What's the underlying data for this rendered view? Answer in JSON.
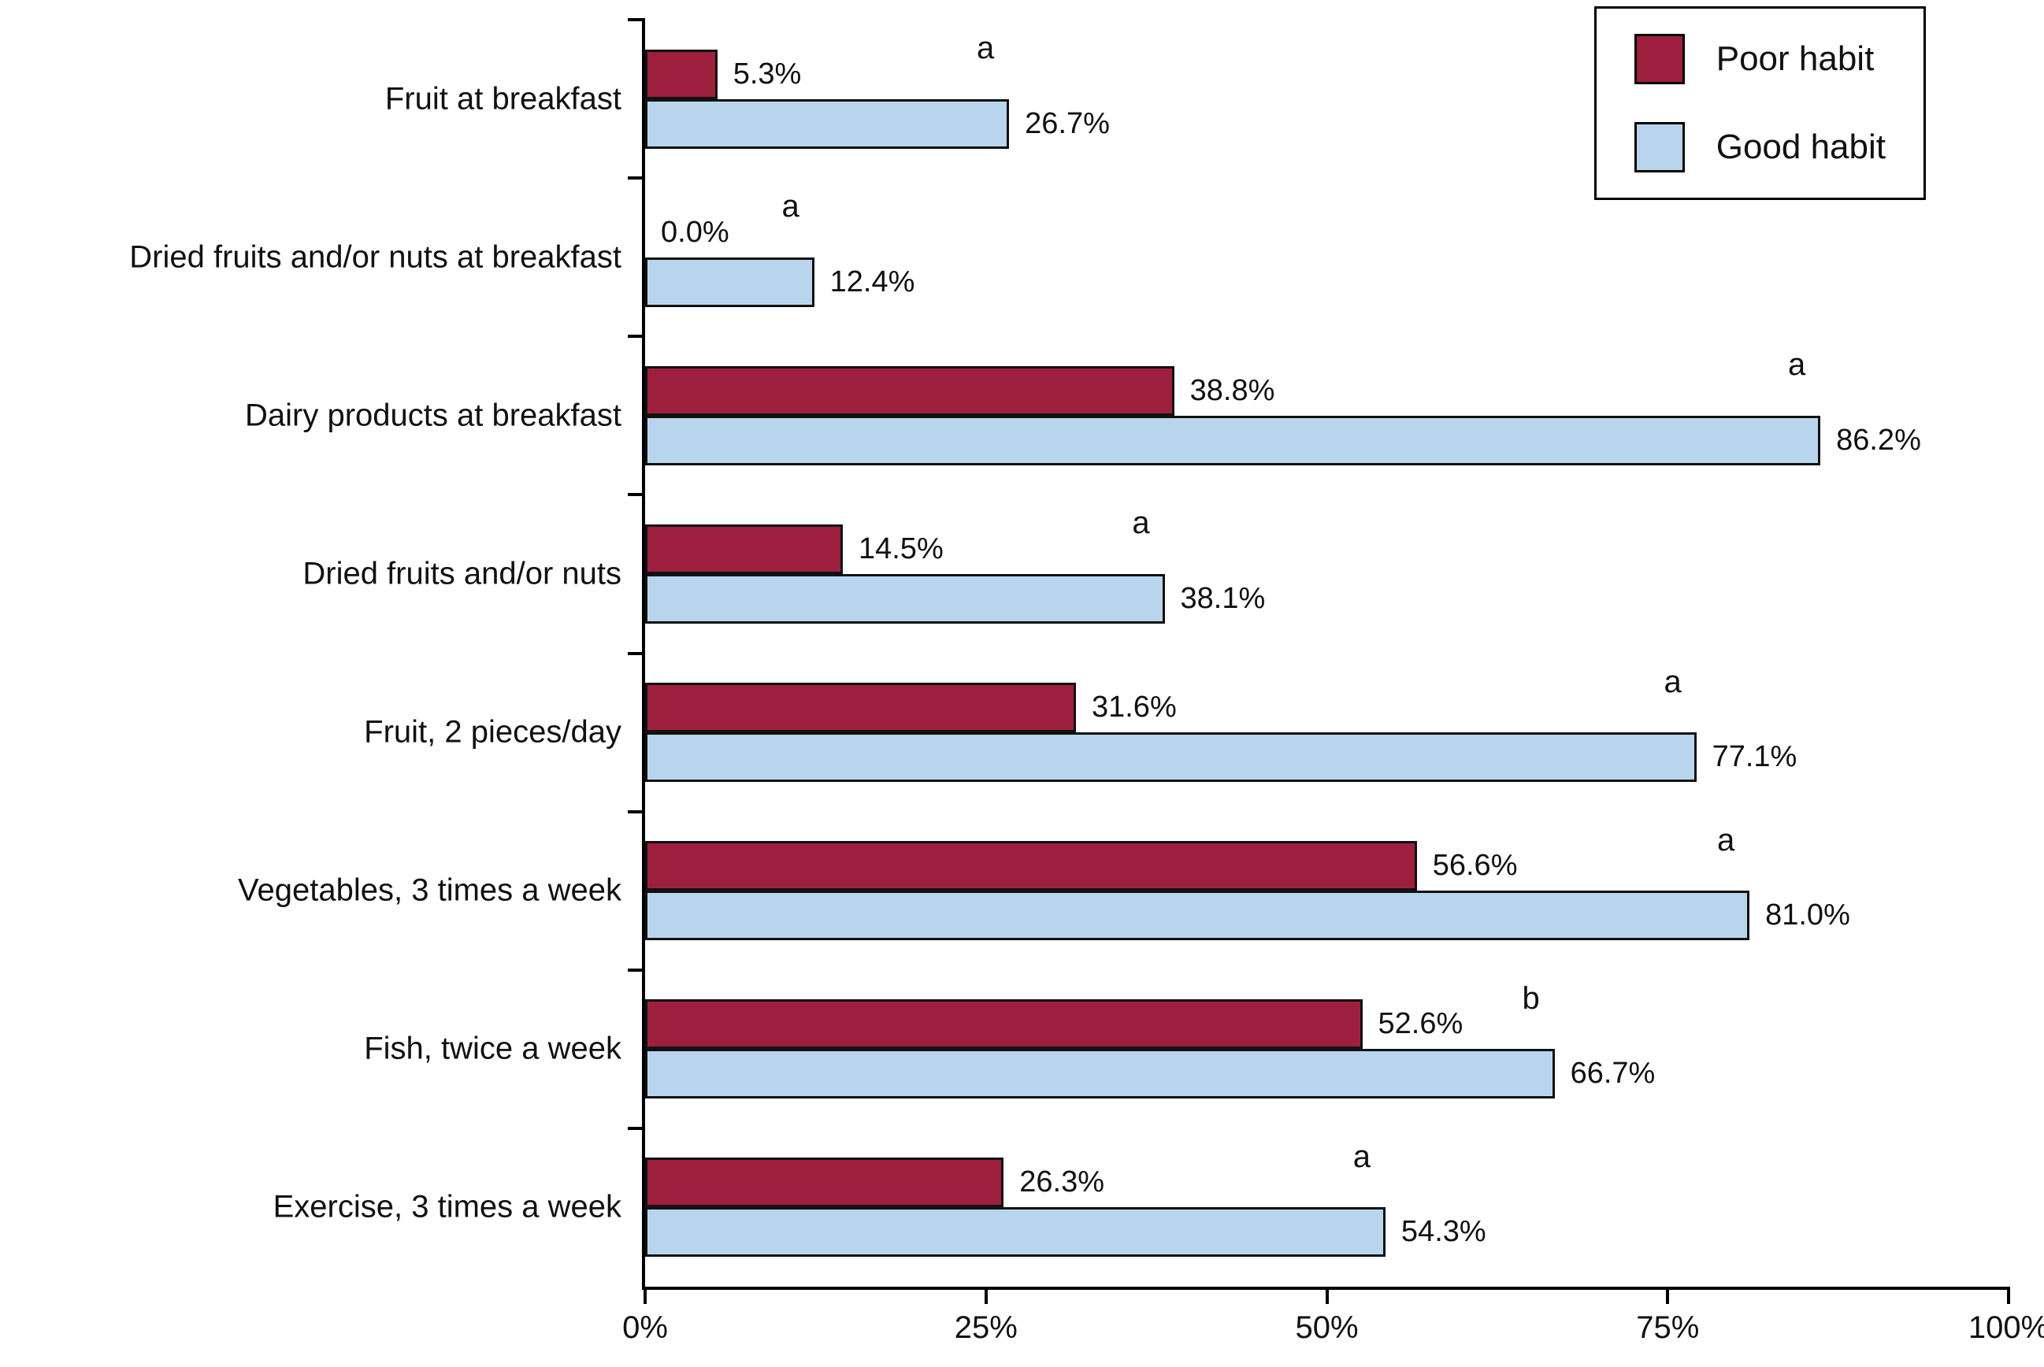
{
  "chart_data": {
    "type": "bar",
    "orientation": "horizontal",
    "title": "",
    "xlabel": "",
    "ylabel": "",
    "xlim": [
      0,
      100
    ],
    "grid": false,
    "legend_position": "top-right",
    "categories": [
      "Fruit at breakfast",
      "Dried fruits and/or nuts at breakfast",
      "Dairy products at breakfast",
      "Dried fruits and/or nuts",
      "Fruit, 2 pieces/day",
      "Vegetables, 3 times a week",
      "Fish, twice a week",
      "Exercise, 3 times a week"
    ],
    "series": [
      {
        "name": "Poor habit",
        "color": "#9E1F3D",
        "values": [
          5.3,
          0.0,
          38.8,
          14.5,
          31.6,
          56.6,
          52.6,
          26.3
        ],
        "value_labels": [
          "5.3%",
          "0.0%",
          "38.8%",
          "14.5%",
          "31.6%",
          "56.6%",
          "52.6%",
          "26.3%"
        ]
      },
      {
        "name": "Good habit",
        "color": "#B9D5EE",
        "values": [
          26.7,
          12.4,
          86.2,
          38.1,
          77.1,
          81.0,
          66.7,
          54.3
        ],
        "value_labels": [
          "26.7%",
          "12.4%",
          "86.2%",
          "38.1%",
          "77.1%",
          "81.0%",
          "66.7%",
          "54.3%"
        ]
      }
    ],
    "significance_letters": [
      "a",
      "a",
      "a",
      "a",
      "a",
      "a",
      "b",
      "a"
    ],
    "x_ticks": [
      {
        "value": 0,
        "label": "0%"
      },
      {
        "value": 25,
        "label": "25%"
      },
      {
        "value": 50,
        "label": "50%"
      },
      {
        "value": 75,
        "label": "75%"
      },
      {
        "value": 100,
        "label": "100%"
      }
    ]
  }
}
